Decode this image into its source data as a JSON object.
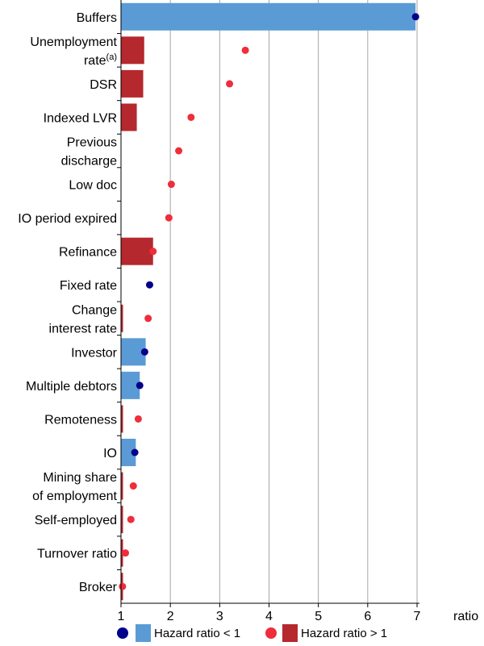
{
  "chart_data": {
    "type": "bar",
    "orientation": "horizontal",
    "xlim": [
      1,
      7
    ],
    "xticks": [
      "1",
      "2",
      "3",
      "4",
      "5",
      "6",
      "7"
    ],
    "xlabel": "ratio",
    "grid": true,
    "categories": [
      {
        "lines": [
          "Buffers"
        ]
      },
      {
        "lines": [
          "Unemployment",
          "rate"
        ],
        "superscript": "(a)"
      },
      {
        "lines": [
          "DSR"
        ]
      },
      {
        "lines": [
          "Indexed LVR"
        ]
      },
      {
        "lines": [
          "Previous",
          "discharge"
        ]
      },
      {
        "lines": [
          "Low doc"
        ]
      },
      {
        "lines": [
          "IO period expired"
        ]
      },
      {
        "lines": [
          "Refinance"
        ]
      },
      {
        "lines": [
          "Fixed rate"
        ]
      },
      {
        "lines": [
          "Change",
          "interest rate"
        ]
      },
      {
        "lines": [
          "Investor"
        ]
      },
      {
        "lines": [
          "Multiple debtors"
        ]
      },
      {
        "lines": [
          "Remoteness"
        ]
      },
      {
        "lines": [
          "IO"
        ]
      },
      {
        "lines": [
          "Mining share",
          "of employment"
        ]
      },
      {
        "lines": [
          "Self-employed"
        ]
      },
      {
        "lines": [
          "Turnover ratio"
        ]
      },
      {
        "lines": [
          "Broker"
        ]
      }
    ],
    "series": [
      {
        "name": "Bar",
        "values": [
          6.97,
          1.47,
          1.45,
          1.32,
          null,
          null,
          null,
          1.65,
          null,
          1.04,
          1.5,
          1.38,
          1.04,
          1.3,
          1.02,
          1.0,
          1.04,
          1.0
        ],
        "group": [
          "lt1",
          "gt1",
          "gt1",
          "gt1",
          null,
          null,
          null,
          "gt1",
          null,
          "gt1",
          "lt1",
          "lt1",
          "gt1",
          "lt1",
          "gt1",
          "gt1",
          "gt1",
          "gt1"
        ]
      },
      {
        "name": "Dot",
        "values": [
          6.97,
          3.52,
          3.2,
          2.42,
          2.17,
          2.02,
          1.97,
          1.65,
          1.58,
          1.55,
          1.48,
          1.38,
          1.35,
          1.28,
          1.25,
          1.2,
          1.09,
          1.03
        ],
        "group": [
          "lt1",
          "gt1",
          "gt1",
          "gt1",
          "gt1",
          "gt1",
          "gt1",
          "gt1",
          "lt1",
          "gt1",
          "lt1",
          "lt1",
          "gt1",
          "lt1",
          "gt1",
          "gt1",
          "gt1",
          "gt1"
        ]
      }
    ],
    "legend": {
      "placement": "bottom",
      "items": [
        {
          "key": "lt1",
          "label": "Hazard ratio < 1"
        },
        {
          "key": "gt1",
          "label": "Hazard ratio > 1"
        }
      ]
    },
    "colors": {
      "lt1_bar": "#5b9bd5",
      "lt1_dot": "#00008b",
      "gt1_bar": "#b5282e",
      "gt1_dot": "#ef2d3b",
      "grid": "#a6a6a6",
      "axis": "#000000"
    }
  }
}
